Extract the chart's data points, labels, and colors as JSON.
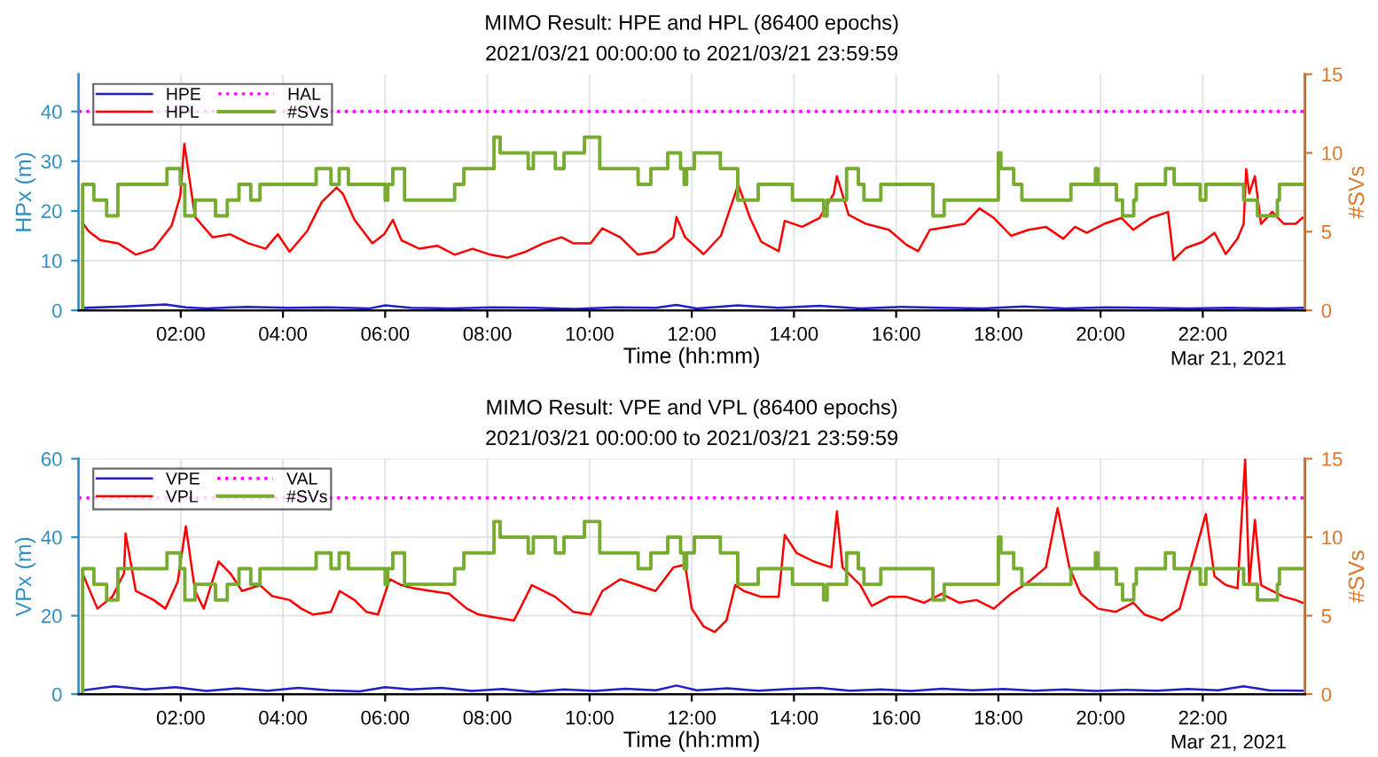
{
  "chart_data": [
    {
      "type": "line",
      "title": "MIMO Result: HPE and HPL (86400 epochs)",
      "subtitle": "2021/03/21 00:00:00 to 2021/03/21 23:59:59",
      "xlabel": "Time (hh:mm)",
      "ylabel": "HPx (m)",
      "y2label": "#SVs",
      "xlim": [
        0,
        24
      ],
      "xticks": [
        {
          "value": 2,
          "label": "02:00"
        },
        {
          "value": 4,
          "label": "04:00"
        },
        {
          "value": 6,
          "label": "06:00"
        },
        {
          "value": 8,
          "label": "08:00"
        },
        {
          "value": 10,
          "label": "10:00"
        },
        {
          "value": 12,
          "label": "12:00"
        },
        {
          "value": 14,
          "label": "14:00"
        },
        {
          "value": 16,
          "label": "16:00"
        },
        {
          "value": 18,
          "label": "18:00"
        },
        {
          "value": 20,
          "label": "20:00"
        },
        {
          "value": 22,
          "label": "22:00"
        }
      ],
      "ylim": [
        0,
        47.5
      ],
      "yticks": [
        0,
        10,
        20,
        30,
        40
      ],
      "y2lim": [
        0,
        15
      ],
      "y2ticks": [
        0,
        5,
        10,
        15
      ],
      "grid": true,
      "legend": "top left",
      "marker": "none",
      "line_style": "solid",
      "annotations": [
        "Mar 21, 2021"
      ],
      "series": [
        {
          "name": "HPE",
          "color": "#1f1fc8",
          "x": [
            0.1,
            0.9,
            1.7,
            2.1,
            2.5,
            3.3,
            4.1,
            4.9,
            5.7,
            6.0,
            6.5,
            7.3,
            8.1,
            8.9,
            9.7,
            10.5,
            11.3,
            11.7,
            12.1,
            12.9,
            13.7,
            14.5,
            15.3,
            16.1,
            16.9,
            17.7,
            18.5,
            19.3,
            20.1,
            20.9,
            21.7,
            22.5,
            23.3,
            23.95
          ],
          "values": [
            0.5,
            0.8,
            1.2,
            0.6,
            0.4,
            0.7,
            0.5,
            0.6,
            0.4,
            1.0,
            0.5,
            0.4,
            0.6,
            0.5,
            0.3,
            0.6,
            0.5,
            1.1,
            0.4,
            1.0,
            0.5,
            0.9,
            0.4,
            0.7,
            0.5,
            0.4,
            0.8,
            0.4,
            0.6,
            0.5,
            0.4,
            0.5,
            0.4,
            0.5
          ]
        },
        {
          "name": "HPL",
          "color": "#ff0000",
          "x": [
            0.08,
            0.2,
            0.43,
            0.77,
            1.12,
            1.47,
            1.82,
            1.99,
            2.07,
            2.28,
            2.62,
            2.97,
            3.32,
            3.66,
            3.9,
            4.13,
            4.47,
            4.76,
            5.05,
            5.17,
            5.4,
            5.75,
            5.98,
            6.15,
            6.32,
            6.67,
            7.02,
            7.36,
            7.71,
            8.06,
            8.4,
            8.75,
            9.1,
            9.45,
            9.68,
            10.02,
            10.25,
            10.6,
            10.95,
            11.29,
            11.64,
            11.7,
            11.87,
            12.23,
            12.57,
            12.85,
            12.91,
            13.14,
            13.36,
            13.7,
            13.82,
            14.16,
            14.5,
            14.78,
            14.84,
            15.07,
            15.41,
            15.86,
            16.2,
            16.43,
            16.66,
            17.0,
            17.34,
            17.63,
            17.91,
            18.25,
            18.59,
            18.93,
            19.27,
            19.5,
            19.73,
            20.07,
            20.41,
            20.64,
            20.98,
            21.32,
            21.43,
            21.66,
            22.0,
            22.23,
            22.45,
            22.68,
            22.8,
            22.85,
            22.91,
            23.02,
            23.14,
            23.36,
            23.59,
            23.82,
            23.95
          ],
          "values": [
            17.6,
            15.9,
            14.1,
            13.5,
            11.2,
            12.4,
            17,
            23,
            33.5,
            18.8,
            14.7,
            15.3,
            13.5,
            12.4,
            15.3,
            11.8,
            15.9,
            21.8,
            24.7,
            23.5,
            18.2,
            13.5,
            15.3,
            18.2,
            14.1,
            12.4,
            13,
            11.2,
            12.4,
            11.2,
            10.6,
            11.8,
            13.5,
            14.7,
            13.5,
            13.5,
            16.5,
            14.7,
            11.2,
            11.8,
            14.7,
            18.8,
            14.7,
            11.3,
            15,
            23.5,
            25.3,
            18.6,
            13.8,
            11.9,
            18,
            16.8,
            18.6,
            23.5,
            27,
            19.2,
            17.4,
            16.2,
            13.2,
            11.9,
            16.2,
            16.8,
            17.4,
            20.5,
            18.6,
            15,
            16.2,
            16.8,
            14.4,
            16.8,
            15.6,
            17.4,
            18.6,
            16.2,
            18.6,
            19.8,
            10.1,
            12.5,
            13.8,
            15.6,
            11.3,
            14.4,
            17.4,
            28.4,
            23.5,
            27,
            17.4,
            19.8,
            17.4,
            17.4,
            18.6
          ]
        },
        {
          "name": "#SVs",
          "type": "step",
          "axis": "y2",
          "color": "#77ac30",
          "x": [
            0.05,
            0.08,
            0.3,
            0.55,
            0.77,
            1.73,
            1.99,
            2.08,
            2.28,
            2.68,
            2.91,
            3.14,
            3.37,
            3.55,
            4.65,
            4.94,
            5.1,
            5.28,
            6.0,
            6.05,
            6.15,
            6.38,
            7.36,
            7.54,
            8.13,
            8.25,
            8.8,
            8.9,
            9.33,
            9.5,
            9.9,
            10.2,
            10.95,
            11.2,
            11.53,
            11.78,
            11.85,
            11.9,
            12.05,
            12.56,
            12.9,
            13.3,
            13.97,
            14.58,
            14.65,
            15.03,
            15.26,
            15.37,
            15.7,
            16.72,
            16.94,
            18.0,
            18.05,
            18.3,
            18.46,
            19.42,
            19.9,
            19.95,
            20.31,
            20.43,
            20.65,
            20.7,
            21.27,
            21.44,
            21.95,
            22.06,
            22.8,
            23.07,
            23.46,
            23.5,
            23.97
          ],
          "values": [
            0,
            8,
            7,
            6,
            8,
            9,
            8,
            6,
            7,
            6,
            7,
            8,
            7,
            8,
            9,
            8,
            9,
            8,
            7,
            8,
            9,
            7,
            8,
            9,
            11,
            10,
            9,
            10,
            9,
            10,
            11,
            9,
            8,
            9,
            10,
            9,
            8,
            9,
            10,
            9,
            7,
            8,
            7,
            6,
            7,
            9,
            8,
            7,
            8,
            6,
            7,
            10,
            9,
            8,
            7,
            8,
            9,
            8,
            7,
            6,
            7,
            8,
            9,
            8,
            7,
            8,
            7,
            6,
            7,
            8,
            8
          ]
        }
      ],
      "ref_lines": [
        {
          "axis": "y",
          "value": 40,
          "label": "HAL",
          "color": "#ff00ff",
          "line_style": "dotted"
        }
      ]
    },
    {
      "type": "line",
      "title": "MIMO Result: VPE and VPL (86400 epochs)",
      "subtitle": "2021/03/21 00:00:00 to 2021/03/21 23:59:59",
      "xlabel": "Time (hh:mm)",
      "ylabel": "VPx (m)",
      "y2label": "#SVs",
      "xlim": [
        0,
        24
      ],
      "xticks": [
        {
          "value": 2,
          "label": "02:00"
        },
        {
          "value": 4,
          "label": "04:00"
        },
        {
          "value": 6,
          "label": "06:00"
        },
        {
          "value": 8,
          "label": "08:00"
        },
        {
          "value": 10,
          "label": "10:00"
        },
        {
          "value": 12,
          "label": "12:00"
        },
        {
          "value": 14,
          "label": "14:00"
        },
        {
          "value": 16,
          "label": "16:00"
        },
        {
          "value": 18,
          "label": "18:00"
        },
        {
          "value": 20,
          "label": "20:00"
        },
        {
          "value": 22,
          "label": "22:00"
        }
      ],
      "ylim": [
        0,
        60
      ],
      "yticks": [
        0,
        20,
        40,
        60
      ],
      "y2lim": [
        0,
        15
      ],
      "y2ticks": [
        0,
        5,
        10,
        15
      ],
      "grid": true,
      "legend": "top left",
      "marker": "none",
      "line_style": "solid",
      "annotations": [
        "Mar 21, 2021"
      ],
      "series": [
        {
          "name": "VPE",
          "color": "#1f1fc8",
          "x": [
            0.1,
            0.7,
            1.3,
            1.9,
            2.5,
            3.1,
            3.7,
            4.3,
            4.9,
            5.5,
            6.0,
            6.5,
            7.1,
            7.7,
            8.3,
            8.9,
            9.5,
            10.1,
            10.7,
            11.3,
            11.7,
            12.1,
            12.7,
            13.3,
            13.9,
            14.5,
            15.1,
            15.7,
            16.3,
            16.9,
            17.5,
            18.1,
            18.7,
            19.3,
            19.9,
            20.5,
            21.1,
            21.7,
            22.3,
            22.8,
            23.3,
            23.95
          ],
          "values": [
            1.0,
            2.0,
            1.2,
            1.8,
            0.8,
            1.5,
            0.9,
            1.6,
            1.0,
            0.7,
            1.8,
            1.2,
            1.6,
            0.8,
            1.3,
            0.6,
            1.2,
            0.8,
            1.4,
            1.0,
            2.2,
            1.0,
            1.5,
            0.9,
            1.3,
            1.6,
            0.9,
            1.2,
            0.8,
            1.4,
            1.0,
            1.3,
            0.9,
            1.2,
            0.8,
            1.1,
            0.9,
            1.3,
            1.0,
            2.0,
            1.0,
            0.9
          ]
        },
        {
          "name": "VPL",
          "color": "#ff0000",
          "x": [
            0.08,
            0.2,
            0.37,
            0.66,
            0.89,
            0.92,
            1.12,
            1.47,
            1.7,
            1.94,
            2.1,
            2.28,
            2.45,
            2.74,
            2.97,
            3.2,
            3.55,
            3.79,
            4.13,
            4.36,
            4.59,
            4.94,
            5.11,
            5.4,
            5.63,
            5.86,
            6.09,
            6.32,
            6.55,
            6.9,
            7.25,
            7.6,
            7.83,
            8.17,
            8.52,
            8.64,
            8.87,
            9.33,
            9.68,
            10.02,
            10.25,
            10.6,
            10.95,
            11.29,
            11.64,
            11.87,
            12.0,
            12.23,
            12.45,
            12.68,
            12.85,
            13.02,
            13.36,
            13.7,
            13.82,
            14.05,
            14.39,
            14.73,
            14.84,
            14.95,
            15.3,
            15.52,
            15.86,
            16.2,
            16.55,
            16.89,
            17.23,
            17.57,
            17.91,
            18.25,
            18.59,
            18.93,
            19.16,
            19.39,
            19.61,
            19.95,
            20.3,
            20.64,
            20.86,
            21.2,
            21.55,
            21.77,
            22.06,
            22.23,
            22.45,
            22.68,
            22.83,
            22.91,
            23.02,
            23.14,
            23.36,
            23.59,
            23.82,
            23.95
          ],
          "values": [
            30.8,
            27,
            21.8,
            24.8,
            30.8,
            41,
            26.3,
            24,
            21.8,
            28.6,
            42.8,
            26.3,
            21.8,
            33.8,
            30.8,
            26.3,
            27.8,
            25,
            24,
            21.8,
            20.3,
            21,
            26.3,
            24,
            21,
            20.3,
            29.3,
            27.8,
            27,
            26.3,
            25.6,
            21.8,
            20.3,
            19.5,
            18.8,
            21.8,
            27.8,
            24.8,
            21,
            20.3,
            26.3,
            29.3,
            27.8,
            26.3,
            32.3,
            33,
            21.8,
            17.3,
            15.8,
            18.8,
            27.8,
            26.3,
            24.8,
            24.8,
            40.6,
            36,
            33.8,
            32.3,
            46.6,
            32.3,
            27.8,
            22.5,
            24.8,
            24.8,
            23.3,
            25.6,
            23.3,
            24,
            21.8,
            25.6,
            28.6,
            32.3,
            47.4,
            32.3,
            25.6,
            21.8,
            21,
            23.3,
            20.3,
            18.8,
            21.8,
            32.3,
            45.9,
            30,
            27.8,
            27,
            60,
            27.8,
            44.4,
            27.8,
            26.3,
            24.8,
            24,
            23.3
          ]
        },
        {
          "name": "#SVs",
          "type": "step",
          "axis": "y2",
          "color": "#77ac30",
          "x": [
            0.05,
            0.08,
            0.3,
            0.55,
            0.77,
            1.73,
            1.99,
            2.08,
            2.28,
            2.68,
            2.91,
            3.14,
            3.37,
            3.55,
            4.65,
            4.94,
            5.1,
            5.28,
            6.0,
            6.05,
            6.15,
            6.38,
            7.36,
            7.54,
            8.13,
            8.25,
            8.8,
            8.9,
            9.33,
            9.5,
            9.9,
            10.2,
            10.95,
            11.2,
            11.53,
            11.78,
            11.85,
            11.9,
            12.05,
            12.56,
            12.9,
            13.3,
            13.97,
            14.58,
            14.65,
            15.03,
            15.26,
            15.37,
            15.7,
            16.72,
            16.94,
            18.0,
            18.05,
            18.3,
            18.46,
            19.42,
            19.9,
            19.95,
            20.31,
            20.43,
            20.65,
            20.7,
            21.27,
            21.44,
            21.95,
            22.06,
            22.8,
            23.07,
            23.46,
            23.5,
            23.97
          ],
          "values": [
            0,
            8,
            7,
            6,
            8,
            9,
            8,
            6,
            7,
            6,
            7,
            8,
            7,
            8,
            9,
            8,
            9,
            8,
            7,
            8,
            9,
            7,
            8,
            9,
            11,
            10,
            9,
            10,
            9,
            10,
            11,
            9,
            8,
            9,
            10,
            9,
            8,
            9,
            10,
            9,
            7,
            8,
            7,
            6,
            7,
            9,
            8,
            7,
            8,
            6,
            7,
            10,
            9,
            8,
            7,
            8,
            9,
            8,
            7,
            6,
            7,
            8,
            9,
            8,
            7,
            8,
            7,
            6,
            7,
            8,
            8
          ]
        }
      ],
      "ref_lines": [
        {
          "axis": "y",
          "value": 50,
          "label": "VAL",
          "color": "#ff00ff",
          "line_style": "dotted"
        }
      ]
    }
  ]
}
